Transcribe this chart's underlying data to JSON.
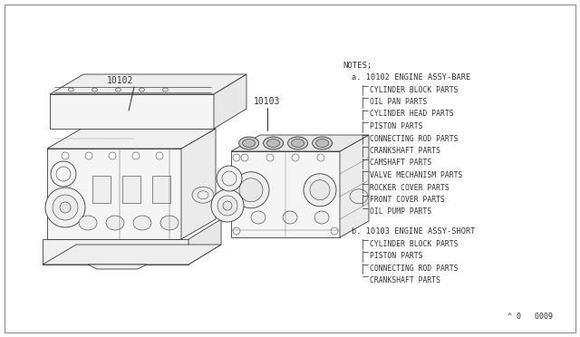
{
  "bg_color": "#ffffff",
  "border_color": "#aaaaaa",
  "line_color": "#333333",
  "text_color": "#333333",
  "notes_label": "NOTES;",
  "section_a_label": "a. 10102 ENGINE ASSY-BARE",
  "section_a_items": [
    "CYLINDER BLOCK PARTS",
    "OIL PAN PARTS",
    "CYLINDER HEAD PARTS",
    "PISTON PARTS",
    "CONNECTING ROD PARTS",
    "CRANKSHAFT PARTS",
    "CAMSHAFT PARTS",
    "VALVE MECHANISM PARTS",
    "ROCKER COVER PARTS",
    "FRONT COVER PARTS",
    "OIL PUMP PARTS"
  ],
  "section_b_label": "b. 10103 ENGINE ASSY-SHORT",
  "section_b_items": [
    "CYLINDER BLOCK PARTS",
    "PISTON PARTS",
    "CONNECTING ROD PARTS",
    "CRANKSHAFT PARTS"
  ],
  "label_10102": "10102",
  "label_10103": "10103",
  "page_number": "^ 0   0009",
  "font_size_notes": 6.5,
  "font_size_section": 6.2,
  "font_size_items": 5.8,
  "font_size_labels": 7.0,
  "font_size_page": 6.0,
  "engine_lw": 0.55
}
